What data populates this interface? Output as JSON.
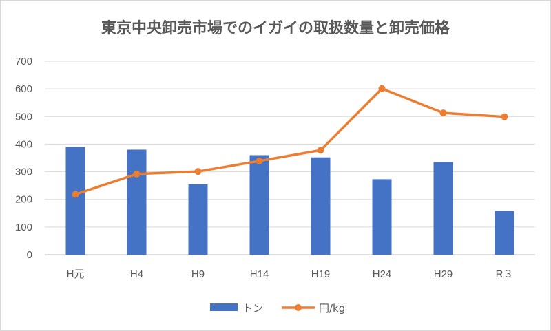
{
  "chart_data": {
    "type": "bar+line",
    "title": "東京中央卸売市場でのイガイの取扱数量と卸売価格",
    "categories": [
      "H元",
      "H4",
      "H9",
      "H14",
      "H19",
      "H24",
      "H29",
      "R３"
    ],
    "series": [
      {
        "name": "トン",
        "type": "bar",
        "color": "#4472c4",
        "values": [
          390,
          380,
          255,
          360,
          352,
          273,
          335,
          158
        ]
      },
      {
        "name": "円/kg",
        "type": "line",
        "color": "#ed7d31",
        "values": [
          218,
          292,
          301,
          339,
          378,
          601,
          513,
          499
        ]
      }
    ],
    "ylim": [
      0,
      700
    ],
    "yticks": [
      "0",
      "100",
      "200",
      "300",
      "400",
      "500",
      "600",
      "700"
    ],
    "grid": true,
    "legend": "bottom"
  }
}
